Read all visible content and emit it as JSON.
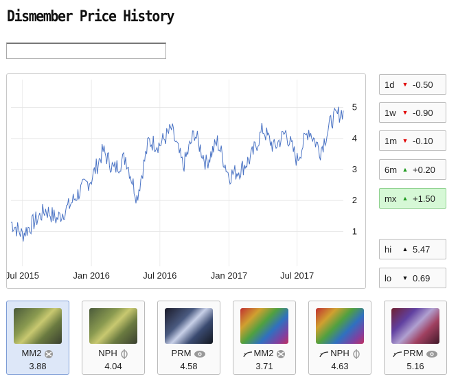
{
  "page": {
    "title": "Dismember Price History"
  },
  "search": {
    "value": "",
    "placeholder": ""
  },
  "chart_data": {
    "type": "line",
    "title": "",
    "xlabel": "",
    "ylabel": "",
    "x_tick_labels": [
      "Jul 2015",
      "Jan 2016",
      "Jul 2016",
      "Jan 2017",
      "Jul 2017"
    ],
    "y_ticks": [
      1,
      2,
      3,
      4,
      5
    ],
    "ylim": [
      0.1,
      5.9
    ],
    "grid": true,
    "legend": "none",
    "line_color": "#4a73c4",
    "series": [
      {
        "x": [
          "2015-06",
          "2015-07",
          "2015-08",
          "2015-09",
          "2015-10",
          "2015-11",
          "2015-12",
          "2016-01",
          "2016-02",
          "2016-03",
          "2016-04",
          "2016-05",
          "2016-06",
          "2016-07",
          "2016-08",
          "2016-09",
          "2016-10",
          "2016-11",
          "2016-12",
          "2017-01",
          "2017-02",
          "2017-03",
          "2017-04",
          "2017-05",
          "2017-06",
          "2017-07",
          "2017-08",
          "2017-09",
          "2017-10",
          "2017-11"
        ],
        "y": [
          1.3,
          0.9,
          1.3,
          1.7,
          1.4,
          1.8,
          2.3,
          2.7,
          3.6,
          3.0,
          3.4,
          2.1,
          3.9,
          3.8,
          4.3,
          3.1,
          4.2,
          3.2,
          3.9,
          2.8,
          3.0,
          3.4,
          4.3,
          3.7,
          4.2,
          3.3,
          4.3,
          3.6,
          4.6,
          4.9
        ]
      }
    ]
  },
  "stats": [
    {
      "label": "1d",
      "direction": "down",
      "value": "-0.50"
    },
    {
      "label": "1w",
      "direction": "down",
      "value": "-0.90"
    },
    {
      "label": "1m",
      "direction": "down",
      "value": "-0.10"
    },
    {
      "label": "6m",
      "direction": "up",
      "value": "+0.20"
    },
    {
      "label": "mx",
      "direction": "up",
      "value": "+1.50",
      "active": true
    },
    {
      "label": "hi",
      "direction": "up",
      "value": "5.47"
    },
    {
      "label": "lo",
      "direction": "down",
      "value": "0.69"
    }
  ],
  "printings": [
    {
      "set": "MM2",
      "price": "3.88",
      "foil": false,
      "selected": true,
      "icon": "mm2-set-icon"
    },
    {
      "set": "NPH",
      "price": "4.04",
      "foil": false,
      "selected": false,
      "icon": "phyrexian-set-icon"
    },
    {
      "set": "PRM",
      "price": "4.58",
      "foil": false,
      "selected": false,
      "icon": "eye-set-icon"
    },
    {
      "set": "MM2",
      "price": "3.71",
      "foil": true,
      "selected": false,
      "icon": "mm2-set-icon"
    },
    {
      "set": "NPH",
      "price": "4.63",
      "foil": true,
      "selected": false,
      "icon": "phyrexian-set-icon"
    },
    {
      "set": "PRM",
      "price": "5.16",
      "foil": true,
      "selected": false,
      "icon": "eye-set-icon"
    }
  ]
}
